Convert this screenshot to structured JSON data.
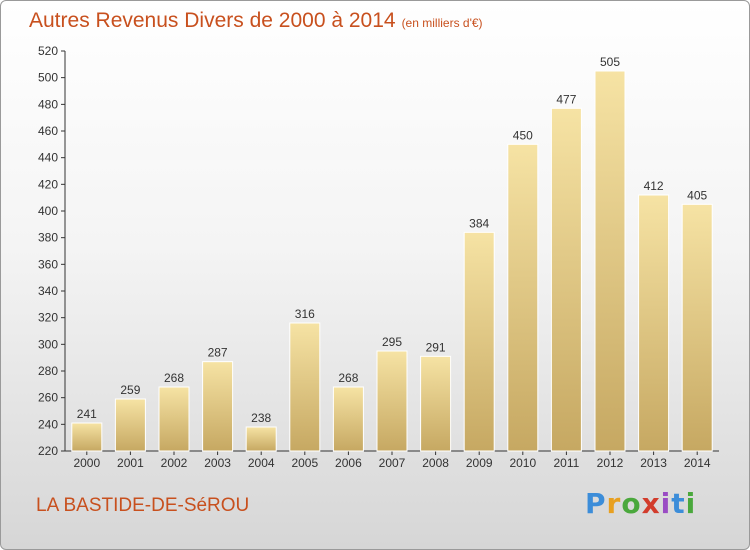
{
  "title": "Autres Revenus Divers de 2000 à 2014",
  "subtitle": "(en milliers d'€)",
  "location": "LA BASTIDE-DE-SéROU",
  "logo": {
    "text": "Proxiti",
    "colors": [
      "#3c8dd9",
      "#e8a020",
      "#4aa83c",
      "#d23c2c",
      "#9a4cc4",
      "#3c8dd9",
      "#4aa83c"
    ]
  },
  "colors": {
    "bar_light": "#f5e0a0",
    "bar_dark": "#c8a860",
    "title": "#c8501e"
  },
  "chart_data": {
    "type": "bar",
    "categories": [
      "2000",
      "2001",
      "2002",
      "2003",
      "2004",
      "2005",
      "2006",
      "2007",
      "2008",
      "2009",
      "2010",
      "2011",
      "2012",
      "2013",
      "2014"
    ],
    "values": [
      241,
      259,
      268,
      287,
      238,
      316,
      268,
      295,
      291,
      384,
      450,
      477,
      505,
      412,
      405
    ],
    "ylim": [
      220,
      520
    ],
    "yticks": [
      220,
      240,
      260,
      280,
      300,
      320,
      340,
      360,
      380,
      400,
      420,
      440,
      460,
      480,
      500,
      520
    ],
    "grid": false,
    "xlabel": "",
    "ylabel": ""
  }
}
